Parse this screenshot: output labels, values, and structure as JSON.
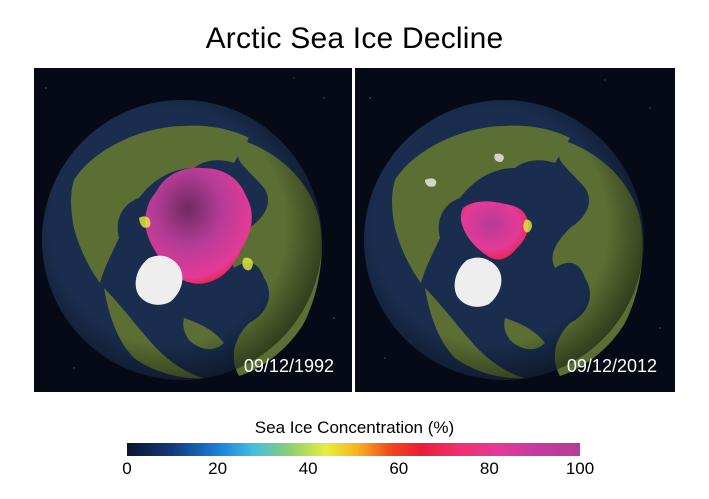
{
  "title": "Arctic Sea Ice Decline",
  "panels": [
    {
      "date": "09/12/1992"
    },
    {
      "date": "09/12/2012"
    }
  ],
  "legend": {
    "title": "Sea Ice Concentration (%)",
    "ticks": [
      "0",
      "20",
      "40",
      "60",
      "80",
      "100"
    ],
    "range": [
      0,
      100
    ]
  },
  "colors": {
    "ocean": "#1a2d4e",
    "land": "#5b6f34",
    "ice_high": "#b43c96",
    "ice_mid": "#ea1c38",
    "greenland": "#eeeeee",
    "space": "#050a16"
  }
}
